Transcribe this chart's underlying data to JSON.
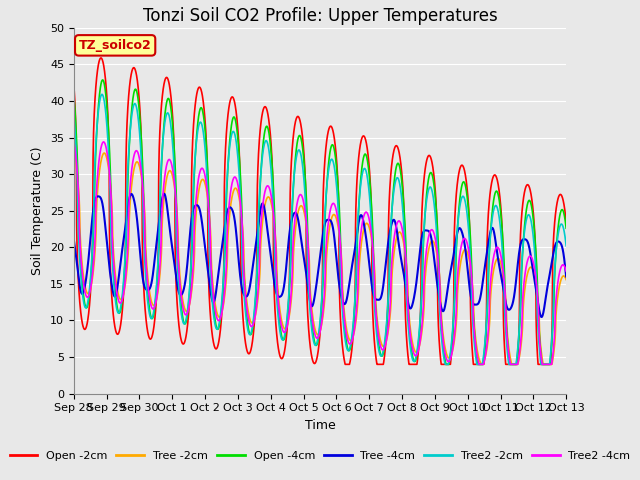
{
  "title": "Tonzi Soil CO2 Profile: Upper Temperatures",
  "xlabel": "Time",
  "ylabel": "Soil Temperature (C)",
  "ylim": [
    0,
    50
  ],
  "yticks": [
    0,
    5,
    10,
    15,
    20,
    25,
    30,
    35,
    40,
    45,
    50
  ],
  "x_tick_labels": [
    "Sep 28",
    "Sep 29",
    "Sep 30",
    "Oct 1",
    "Oct 2",
    "Oct 3",
    "Oct 4",
    "Oct 5",
    "Oct 6",
    "Oct 7",
    "Oct 8",
    "Oct 9",
    "Oct 10",
    "Oct 11",
    "Oct 12",
    "Oct 13"
  ],
  "annotation_text": "TZ_soilco2",
  "annotation_color": "#cc0000",
  "annotation_bg": "#ffff99",
  "series": [
    {
      "label": "Open -2cm",
      "color": "#ff0000"
    },
    {
      "label": "Tree -2cm",
      "color": "#ffaa00"
    },
    {
      "label": "Open -4cm",
      "color": "#00dd00"
    },
    {
      "label": "Tree -4cm",
      "color": "#0000dd"
    },
    {
      "label": "Tree2 -2cm",
      "color": "#00cccc"
    },
    {
      "label": "Tree2 -4cm",
      "color": "#ff00ff"
    }
  ],
  "background_color": "#e8e8e8",
  "plot_bg_color": "#e8e8e8",
  "grid_color": "#ffffff",
  "title_fontsize": 12,
  "label_fontsize": 9,
  "tick_fontsize": 8
}
